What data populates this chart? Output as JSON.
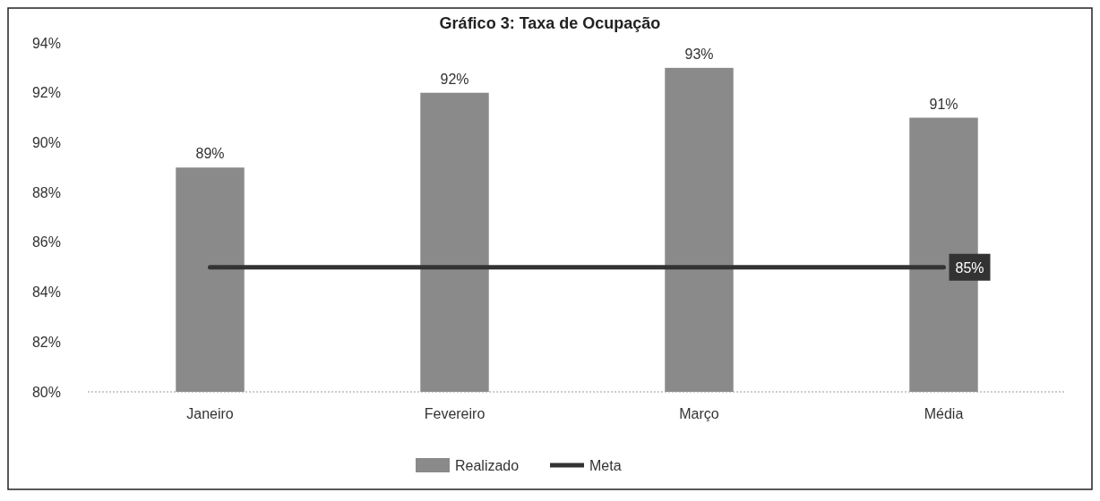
{
  "chart_data": {
    "type": "bar",
    "title": "Gráfico 3: Taxa de Ocupação",
    "categories": [
      "Janeiro",
      "Fevereiro",
      "Março",
      "Média"
    ],
    "series": [
      {
        "name": "Realizado",
        "color": "#8a8a8a",
        "values": [
          89,
          92,
          93,
          91
        ],
        "value_labels": [
          "89%",
          "92%",
          "93%",
          "91%"
        ]
      },
      {
        "name": "Meta",
        "type": "line",
        "color": "#333333",
        "values": [
          85,
          85,
          85,
          85
        ],
        "value_labels": [
          null,
          null,
          null,
          "85%"
        ]
      }
    ],
    "ylim": [
      80,
      94
    ],
    "yticks": [
      {
        "value": 80,
        "label": "80%"
      },
      {
        "value": 82,
        "label": "82%"
      },
      {
        "value": 84,
        "label": "84%"
      },
      {
        "value": 86,
        "label": "86%"
      },
      {
        "value": 88,
        "label": "88%"
      },
      {
        "value": 90,
        "label": "90%"
      },
      {
        "value": 92,
        "label": "92%"
      },
      {
        "value": 94,
        "label": "94%"
      }
    ],
    "grid": false,
    "legend": "bottom",
    "marker": "none",
    "line_style": "solid"
  }
}
